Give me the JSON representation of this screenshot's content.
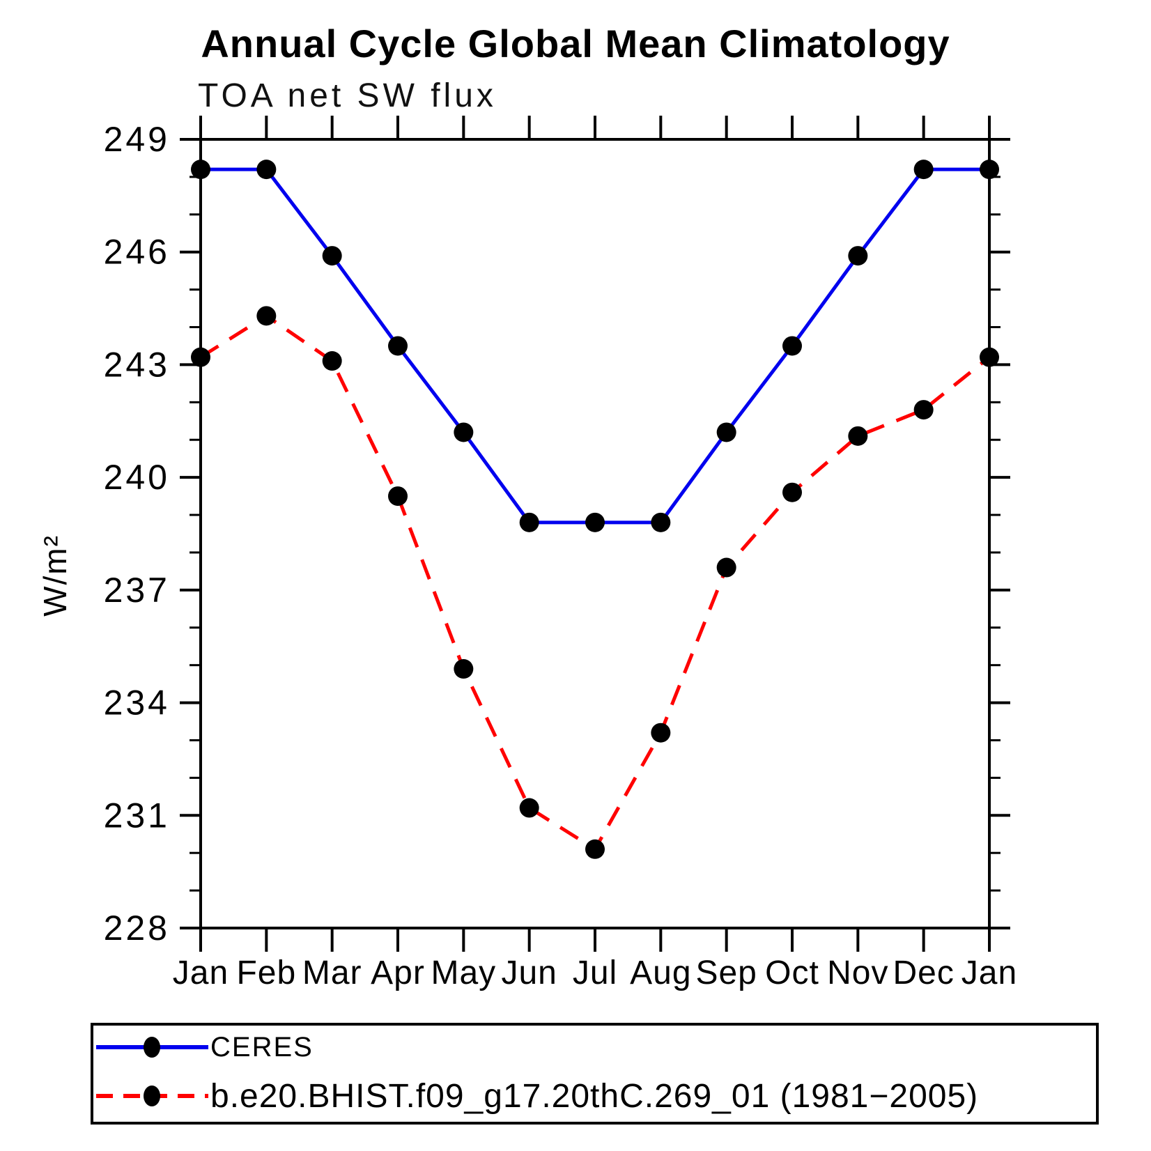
{
  "chart_data": {
    "type": "line",
    "title": "Annual Cycle Global Mean Climatology",
    "subtitle": "TOA net SW flux",
    "ylabel": "W/m²",
    "x": [
      "Jan",
      "Feb",
      "Mar",
      "Apr",
      "May",
      "Jun",
      "Jul",
      "Aug",
      "Sep",
      "Oct",
      "Nov",
      "Dec",
      "Jan"
    ],
    "ylim": [
      228,
      249
    ],
    "ytick_step": 3,
    "ytick_minor_step": 1,
    "grid": false,
    "legend_position": "bottom-box",
    "marker": "filled-circle",
    "marker_color": "#000000",
    "series": [
      {
        "name": "CERES",
        "color": "#0000ee",
        "style": "solid",
        "values": [
          248.2,
          248.2,
          245.9,
          243.5,
          241.2,
          238.8,
          238.8,
          238.8,
          241.2,
          243.5,
          245.9,
          248.2,
          248.2
        ]
      },
      {
        "name": "b.e20.BHIST.f09_g17.20thC.269_01 (1981−2005)",
        "color": "#ff0000",
        "style": "dashed",
        "values": [
          243.2,
          244.3,
          243.1,
          239.5,
          234.9,
          231.2,
          230.1,
          233.2,
          237.6,
          239.6,
          241.1,
          241.8,
          243.2
        ]
      }
    ]
  }
}
